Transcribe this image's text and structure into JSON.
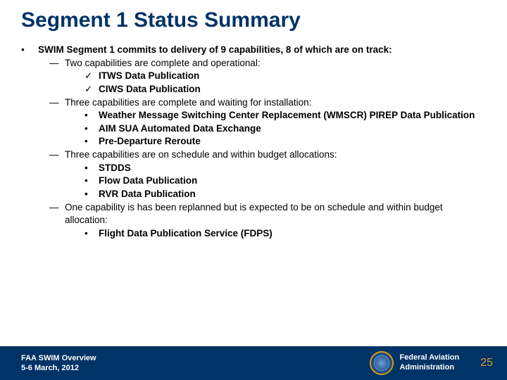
{
  "title": "Segment 1 Status Summary",
  "leadText": "SWIM Segment 1 commits to delivery of 9 capabilities, 8 of which are on track:",
  "sections": [
    {
      "intro": "Two capabilities are complete and operational:",
      "marker": "check",
      "items": [
        "ITWS Data Publication",
        "CIWS Data Publication"
      ]
    },
    {
      "intro": "Three capabilities are complete and waiting for installation:",
      "marker": "dot",
      "items": [
        "Weather Message Switching Center Replacement (WMSCR) PIREP Data Publication",
        "AIM SUA Automated Data Exchange",
        "Pre-Departure Reroute"
      ]
    },
    {
      "intro": "Three capabilities are on schedule and within budget allocations:",
      "marker": "dot",
      "items": [
        "STDDS",
        "Flow Data Publication",
        "RVR Data Publication"
      ]
    },
    {
      "intro": "One capability is has been replanned but is expected to be on schedule and within budget allocation:",
      "marker": "dot",
      "items": [
        "Flight Data Publication Service (FDPS)"
      ]
    }
  ],
  "footer": {
    "event": "FAA SWIM Overview",
    "date": "5-6 March, 2012",
    "agency1": "Federal Aviation",
    "agency2": "Administration",
    "page": "25"
  },
  "markers": {
    "topBullet": "•",
    "dash": "―",
    "check": "✓",
    "dot": "•"
  }
}
